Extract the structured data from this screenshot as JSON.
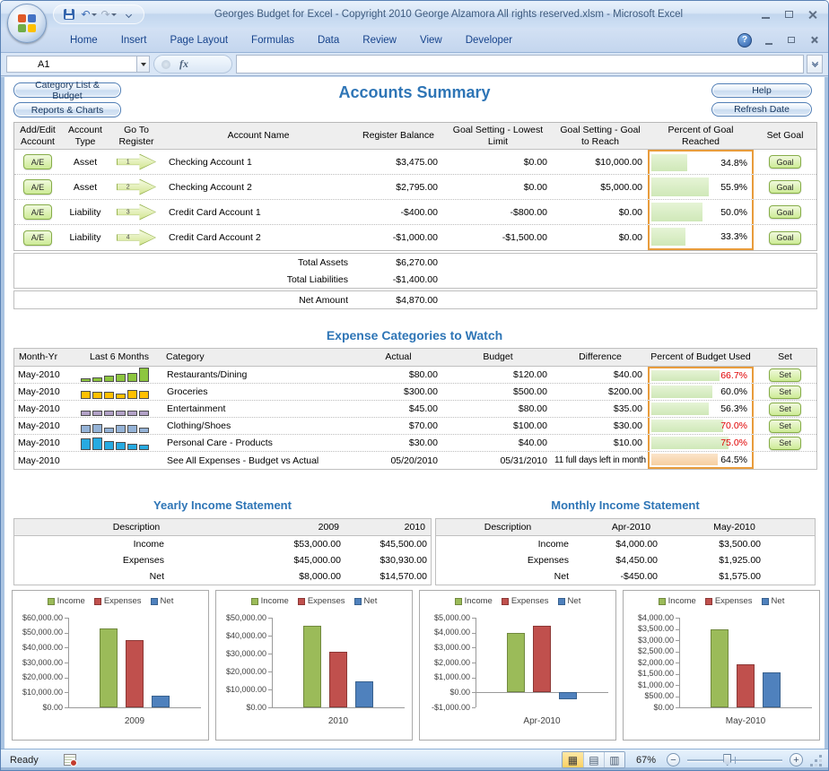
{
  "window": {
    "title": "Georges Budget for Excel - Copyright 2010  George Alzamora  All rights reserved.xlsm - Microsoft Excel",
    "ribbon_tabs": [
      "Home",
      "Insert",
      "Page Layout",
      "Formulas",
      "Data",
      "Review",
      "View",
      "Developer"
    ],
    "name_box_value": "A1",
    "formula_value": ""
  },
  "icons": {
    "fx": "fx",
    "undo": "↶",
    "redo": "↷",
    "help": "?",
    "minus": "−",
    "plus": "+",
    "view_normal": "▦",
    "view_page_layout": "▤",
    "view_page_break": "▥"
  },
  "nav_buttons": {
    "category_list": "Category List & Budget",
    "reports": "Reports & Charts",
    "help": "Help",
    "refresh": "Refresh Date"
  },
  "accounts_summary": {
    "title": "Accounts Summary",
    "columns": [
      "Add/Edit Account",
      "Account Type",
      "Go To Register",
      "Account Name",
      "Register Balance",
      "Goal Setting - Lowest Limit",
      "Goal Setting - Goal to Reach",
      "Percent of Goal Reached",
      "Set Goal"
    ],
    "rows": [
      {
        "add_edit": "A/E",
        "account_type": "Asset",
        "register_num": "1",
        "account_name": "Checking Account 1",
        "register_balance": "$3,475.00",
        "goal_lowest_limit": "$0.00",
        "goal_to_reach": "$10,000.00",
        "percent_reached": "34.8%",
        "percent_value": 34.8,
        "set_goal": "Goal"
      },
      {
        "add_edit": "A/E",
        "account_type": "Asset",
        "register_num": "2",
        "account_name": "Checking Account 2",
        "register_balance": "$2,795.00",
        "goal_lowest_limit": "$0.00",
        "goal_to_reach": "$5,000.00",
        "percent_reached": "55.9%",
        "percent_value": 55.9,
        "set_goal": "Goal"
      },
      {
        "add_edit": "A/E",
        "account_type": "Liability",
        "register_num": "3",
        "account_name": "Credit Card Account 1",
        "register_balance": "-$400.00",
        "goal_lowest_limit": "-$800.00",
        "goal_to_reach": "$0.00",
        "percent_reached": "50.0%",
        "percent_value": 50.0,
        "set_goal": "Goal"
      },
      {
        "add_edit": "A/E",
        "account_type": "Liability",
        "register_num": "4",
        "account_name": "Credit Card Account 2",
        "register_balance": "-$1,000.00",
        "goal_lowest_limit": "-$1,500.00",
        "goal_to_reach": "$0.00",
        "percent_reached": "33.3%",
        "percent_value": 33.3,
        "set_goal": "Goal"
      }
    ],
    "totals": [
      {
        "label": "Total Assets",
        "value": "$6,270.00"
      },
      {
        "label": "Total Liabilities",
        "value": "-$1,400.00"
      }
    ],
    "net": {
      "label": "Net Amount",
      "value": "$4,870.00"
    }
  },
  "expense_watch": {
    "title": "Expense Categories to Watch",
    "columns": [
      "Month-Yr",
      "Last 6 Months",
      "Category",
      "Actual",
      "Budget",
      "Difference",
      "Percent of Budget Used",
      "Set"
    ],
    "rows": [
      {
        "month": "May-2010",
        "category": "Restaurants/Dining",
        "actual": "$80.00",
        "budget": "$120.00",
        "difference": "$40.00",
        "percent_used": "66.7%",
        "percent_value": 66.7,
        "percent_alert": true,
        "set": "Set",
        "spark_color": "#8dc63f",
        "spark_values": [
          0.28,
          0.3,
          0.45,
          0.55,
          0.62,
          1
        ]
      },
      {
        "month": "May-2010",
        "category": "Groceries",
        "actual": "$300.00",
        "budget": "$500.00",
        "difference": "$200.00",
        "percent_used": "60.0%",
        "percent_value": 60.0,
        "percent_alert": false,
        "set": "Set",
        "spark_color": "#ffc000",
        "spark_values": [
          0.55,
          0.5,
          0.48,
          0.35,
          0.62,
          0.55
        ]
      },
      {
        "month": "May-2010",
        "category": "Entertainment",
        "actual": "$45.00",
        "budget": "$80.00",
        "difference": "$35.00",
        "percent_used": "56.3%",
        "percent_value": 56.3,
        "percent_alert": false,
        "set": "Set",
        "spark_color": "#b2a1c7",
        "spark_values": [
          0.35,
          0.4,
          0.35,
          0.38,
          0.36,
          0.35
        ]
      },
      {
        "month": "May-2010",
        "category": "Clothing/Shoes",
        "actual": "$70.00",
        "budget": "$100.00",
        "difference": "$30.00",
        "percent_used": "70.0%",
        "percent_value": 70.0,
        "percent_alert": true,
        "set": "Set",
        "spark_color": "#95b3d7",
        "spark_values": [
          0.55,
          0.6,
          0.4,
          0.55,
          0.58,
          0.4
        ]
      },
      {
        "month": "May-2010",
        "category": "Personal Care - Products",
        "actual": "$30.00",
        "budget": "$40.00",
        "difference": "$10.00",
        "percent_used": "75.0%",
        "percent_value": 75.0,
        "percent_alert": true,
        "set": "Set",
        "spark_color": "#27aae1",
        "spark_values": [
          0.8,
          0.85,
          0.6,
          0.55,
          0.45,
          0.35
        ]
      },
      {
        "month": "May-2010",
        "category": "See All Expenses - Budget vs Actual",
        "actual": "05/20/2010",
        "budget": "05/31/2010",
        "difference": "11 full days left in month",
        "percent_used": "64.5%",
        "percent_value": 64.5,
        "percent_alert": false,
        "summary_row": true
      }
    ]
  },
  "income_statements": {
    "yearly": {
      "title": "Yearly Income Statement",
      "columns": [
        "Description",
        "2009",
        "2010"
      ],
      "rows": [
        [
          "Income",
          "$53,000.00",
          "$45,500.00"
        ],
        [
          "Expenses",
          "$45,000.00",
          "$30,930.00"
        ],
        [
          "Net",
          "$8,000.00",
          "$14,570.00"
        ]
      ]
    },
    "monthly": {
      "title": "Monthly Income Statement",
      "columns": [
        "Description",
        "Apr-2010",
        "May-2010"
      ],
      "rows": [
        [
          "Income",
          "$4,000.00",
          "$3,500.00"
        ],
        [
          "Expenses",
          "$4,450.00",
          "$1,925.00"
        ],
        [
          "Net",
          "-$450.00",
          "$1,575.00"
        ]
      ]
    }
  },
  "chart_data": [
    {
      "type": "bar",
      "title": "2009",
      "categories": [
        "2009"
      ],
      "legend_position": "top",
      "series": [
        {
          "name": "Income",
          "values": [
            53000
          ]
        },
        {
          "name": "Expenses",
          "values": [
            45000
          ]
        },
        {
          "name": "Net",
          "values": [
            8000
          ]
        }
      ],
      "colors": [
        "#9bbb59",
        "#c0504d",
        "#4f81bd"
      ],
      "border_colors": [
        "#71893f",
        "#8c3836",
        "#38618e"
      ],
      "ylim": [
        0,
        60000
      ],
      "yticks": [
        {
          "label": "$0.00",
          "value": 0
        },
        {
          "label": "$10,000.00",
          "value": 10000
        },
        {
          "label": "$20,000.00",
          "value": 20000
        },
        {
          "label": "$30,000.00",
          "value": 30000
        },
        {
          "label": "$40,000.00",
          "value": 40000
        },
        {
          "label": "$50,000.00",
          "value": 50000
        },
        {
          "label": "$60,000.00",
          "value": 60000
        }
      ]
    },
    {
      "type": "bar",
      "title": "2010",
      "categories": [
        "2010"
      ],
      "legend_position": "top",
      "series": [
        {
          "name": "Income",
          "values": [
            45500
          ]
        },
        {
          "name": "Expenses",
          "values": [
            30930
          ]
        },
        {
          "name": "Net",
          "values": [
            14570
          ]
        }
      ],
      "colors": [
        "#9bbb59",
        "#c0504d",
        "#4f81bd"
      ],
      "border_colors": [
        "#71893f",
        "#8c3836",
        "#38618e"
      ],
      "ylim": [
        0,
        50000
      ],
      "yticks": [
        {
          "label": "$0.00",
          "value": 0
        },
        {
          "label": "$10,000.00",
          "value": 10000
        },
        {
          "label": "$20,000.00",
          "value": 20000
        },
        {
          "label": "$30,000.00",
          "value": 30000
        },
        {
          "label": "$40,000.00",
          "value": 40000
        },
        {
          "label": "$50,000.00",
          "value": 50000
        }
      ]
    },
    {
      "type": "bar",
      "title": "Apr-2010",
      "categories": [
        "Apr-2010"
      ],
      "legend_position": "top",
      "series": [
        {
          "name": "Income",
          "values": [
            4000
          ]
        },
        {
          "name": "Expenses",
          "values": [
            4450
          ]
        },
        {
          "name": "Net",
          "values": [
            -450
          ]
        }
      ],
      "colors": [
        "#9bbb59",
        "#c0504d",
        "#4f81bd"
      ],
      "border_colors": [
        "#71893f",
        "#8c3836",
        "#38618e"
      ],
      "ylim": [
        -1000,
        5000
      ],
      "yticks": [
        {
          "label": "-$1,000.00",
          "value": -1000
        },
        {
          "label": "$0.00",
          "value": 0
        },
        {
          "label": "$1,000.00",
          "value": 1000
        },
        {
          "label": "$2,000.00",
          "value": 2000
        },
        {
          "label": "$3,000.00",
          "value": 3000
        },
        {
          "label": "$4,000.00",
          "value": 4000
        },
        {
          "label": "$5,000.00",
          "value": 5000
        }
      ]
    },
    {
      "type": "bar",
      "title": "May-2010",
      "categories": [
        "May-2010"
      ],
      "legend_position": "top",
      "series": [
        {
          "name": "Income",
          "values": [
            3500
          ]
        },
        {
          "name": "Expenses",
          "values": [
            1925
          ]
        },
        {
          "name": "Net",
          "values": [
            1575
          ]
        }
      ],
      "colors": [
        "#9bbb59",
        "#c0504d",
        "#4f81bd"
      ],
      "border_colors": [
        "#71893f",
        "#8c3836",
        "#38618e"
      ],
      "ylim": [
        0,
        4000
      ],
      "yticks": [
        {
          "label": "$0.00",
          "value": 0
        },
        {
          "label": "$500.00",
          "value": 500
        },
        {
          "label": "$1,000.00",
          "value": 1000
        },
        {
          "label": "$1,500.00",
          "value": 1500
        },
        {
          "label": "$2,000.00",
          "value": 2000
        },
        {
          "label": "$2,500.00",
          "value": 2500
        },
        {
          "label": "$3,000.00",
          "value": 3000
        },
        {
          "label": "$3,500.00",
          "value": 3500
        },
        {
          "label": "$4,000.00",
          "value": 4000
        }
      ]
    }
  ],
  "statusbar": {
    "mode": "Ready",
    "zoom": "67%"
  }
}
